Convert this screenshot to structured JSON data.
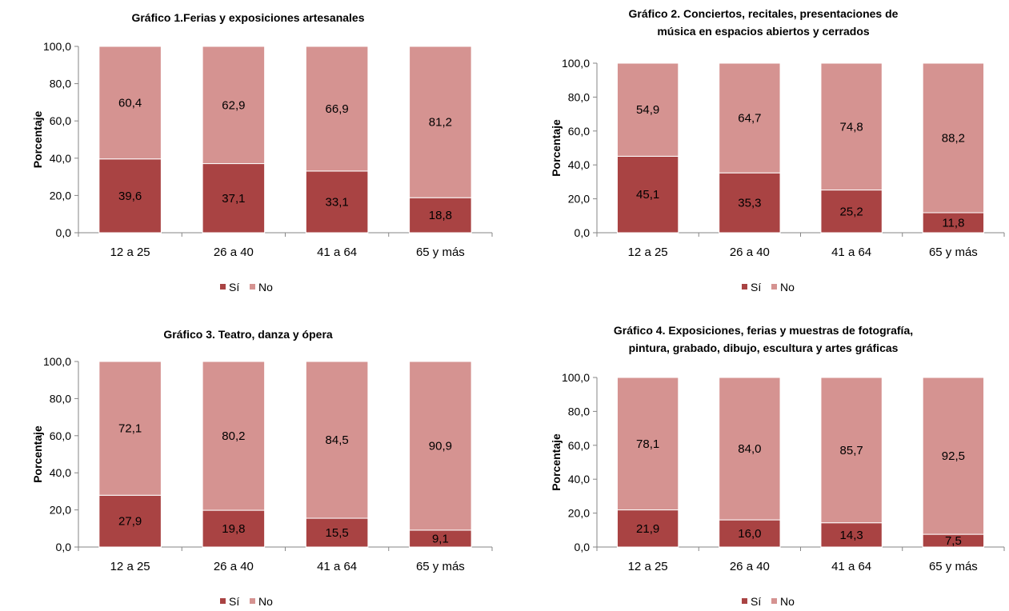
{
  "colors": {
    "si": "#a94343",
    "no": "#d59391",
    "axis": "#868686"
  },
  "chart_data": [
    {
      "type": "bar",
      "stacked": true,
      "title": [
        "Gráfico 1.Ferias y exposiciones artesanales"
      ],
      "ylabel": "Porcentaje",
      "ylim": [
        0,
        100
      ],
      "yticks": [
        "0,0",
        "20,0",
        "40,0",
        "60,0",
        "80,0",
        "100,0"
      ],
      "categories": [
        "12 a 25",
        "26 a 40",
        "41 a 64",
        "65 y más"
      ],
      "series": [
        {
          "name": "Sí",
          "values": [
            39.6,
            37.1,
            33.1,
            18.8
          ],
          "labels": [
            "39,6",
            "37,1",
            "33,1",
            "18,8"
          ]
        },
        {
          "name": "No",
          "values": [
            60.4,
            62.9,
            66.9,
            81.2
          ],
          "labels": [
            "60,4",
            "62,9",
            "66,9",
            "81,2"
          ]
        }
      ],
      "legend": "bottom"
    },
    {
      "type": "bar",
      "stacked": true,
      "title": [
        "Gráfico 2. Conciertos, recitales, presentaciones de",
        "música en espacios abiertos y cerrados"
      ],
      "ylabel": "Porcentaje",
      "ylim": [
        0,
        100
      ],
      "yticks": [
        "0,0",
        "20,0",
        "40,0",
        "60,0",
        "80,0",
        "100,0"
      ],
      "categories": [
        "12 a 25",
        "26 a 40",
        "41 a 64",
        "65 y más"
      ],
      "series": [
        {
          "name": "Sí",
          "values": [
            45.1,
            35.3,
            25.2,
            11.8
          ],
          "labels": [
            "45,1",
            "35,3",
            "25,2",
            "11,8"
          ]
        },
        {
          "name": "No",
          "values": [
            54.9,
            64.7,
            74.8,
            88.2
          ],
          "labels": [
            "54,9",
            "64,7",
            "74,8",
            "88,2"
          ]
        }
      ],
      "legend": "bottom"
    },
    {
      "type": "bar",
      "stacked": true,
      "title": [
        "Gráfico 3. Teatro, danza y ópera"
      ],
      "ylabel": "Porcentaje",
      "ylim": [
        0,
        100
      ],
      "yticks": [
        "0,0",
        "20,0",
        "40,0",
        "60,0",
        "80,0",
        "100,0"
      ],
      "categories": [
        "12 a 25",
        "26 a 40",
        "41 a 64",
        "65 y más"
      ],
      "series": [
        {
          "name": "Sí",
          "values": [
            27.9,
            19.8,
            15.5,
            9.1
          ],
          "labels": [
            "27,9",
            "19,8",
            "15,5",
            "9,1"
          ]
        },
        {
          "name": "No",
          "values": [
            72.1,
            80.2,
            84.5,
            90.9
          ],
          "labels": [
            "72,1",
            "80,2",
            "84,5",
            "90,9"
          ]
        }
      ],
      "legend": "bottom"
    },
    {
      "type": "bar",
      "stacked": true,
      "title": [
        "Gráfico 4. Exposiciones, ferias y muestras de fotografía,",
        "pintura, grabado, dibujo, escultura y artes gráficas"
      ],
      "ylabel": "Porcentaje",
      "ylim": [
        0,
        100
      ],
      "yticks": [
        "0,0",
        "20,0",
        "40,0",
        "60,0",
        "80,0",
        "100,0"
      ],
      "categories": [
        "12 a 25",
        "26 a 40",
        "41 a 64",
        "65 y más"
      ],
      "series": [
        {
          "name": "Sí",
          "values": [
            21.9,
            16.0,
            14.3,
            7.5
          ],
          "labels": [
            "21,9",
            "16,0",
            "14,3",
            "7,5"
          ]
        },
        {
          "name": "No",
          "values": [
            78.1,
            84.0,
            85.7,
            92.5
          ],
          "labels": [
            "78,1",
            "84,0",
            "85,7",
            "92,5"
          ]
        }
      ],
      "legend": "bottom"
    }
  ]
}
